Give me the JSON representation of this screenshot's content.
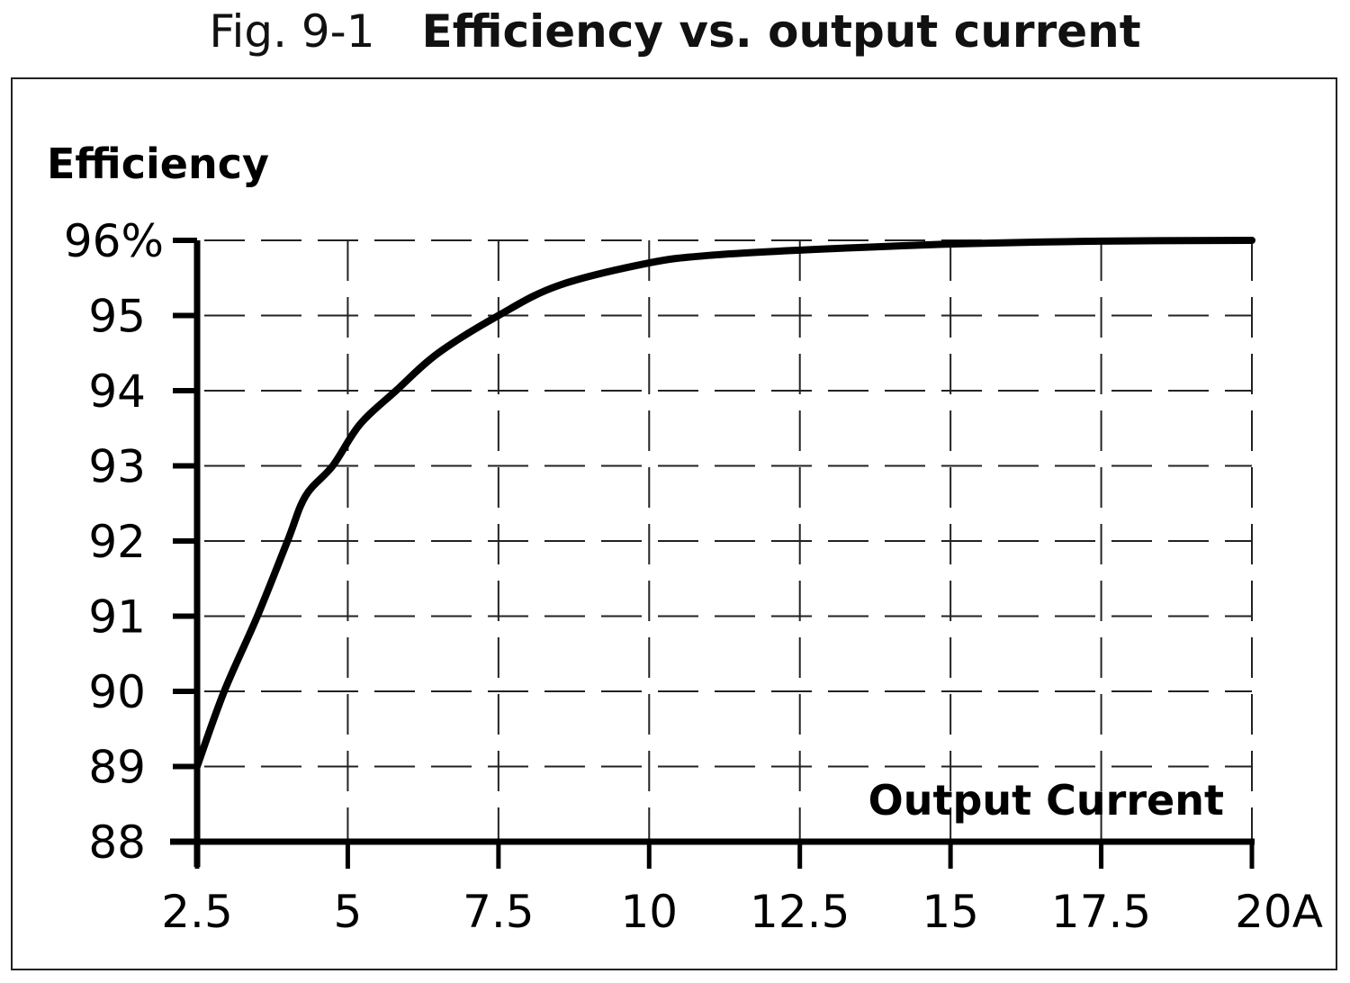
{
  "figure": {
    "number_label": "Fig. 9-1",
    "title": "Efficiency vs. output current"
  },
  "chart_data": {
    "type": "line",
    "title": "Efficiency vs. output current",
    "xlabel": "Output Current",
    "ylabel": "Efficiency",
    "x_unit": "A",
    "y_unit": "%",
    "xlim": [
      2.5,
      20
    ],
    "ylim": [
      88,
      96
    ],
    "x_ticks": [
      "2.5",
      "5",
      "7.5",
      "10",
      "12.5",
      "15",
      "17.5",
      "20A"
    ],
    "y_ticks": [
      "88",
      "89",
      "90",
      "91",
      "92",
      "93",
      "94",
      "95",
      "96%"
    ],
    "grid": true,
    "grid_style": "dashed",
    "legend": null,
    "series": [
      {
        "name": "Efficiency",
        "x": [
          2.5,
          2.95,
          3.5,
          4.0,
          4.3,
          4.75,
          5.2,
          5.8,
          6.5,
          7.5,
          8.5,
          10,
          11,
          12.5,
          15,
          17.5,
          20
        ],
        "y": [
          89.0,
          90.0,
          91.0,
          92.0,
          92.6,
          93.0,
          93.55,
          94.0,
          94.5,
          95.0,
          95.4,
          95.7,
          95.8,
          95.87,
          95.95,
          95.99,
          96.0
        ]
      }
    ]
  }
}
